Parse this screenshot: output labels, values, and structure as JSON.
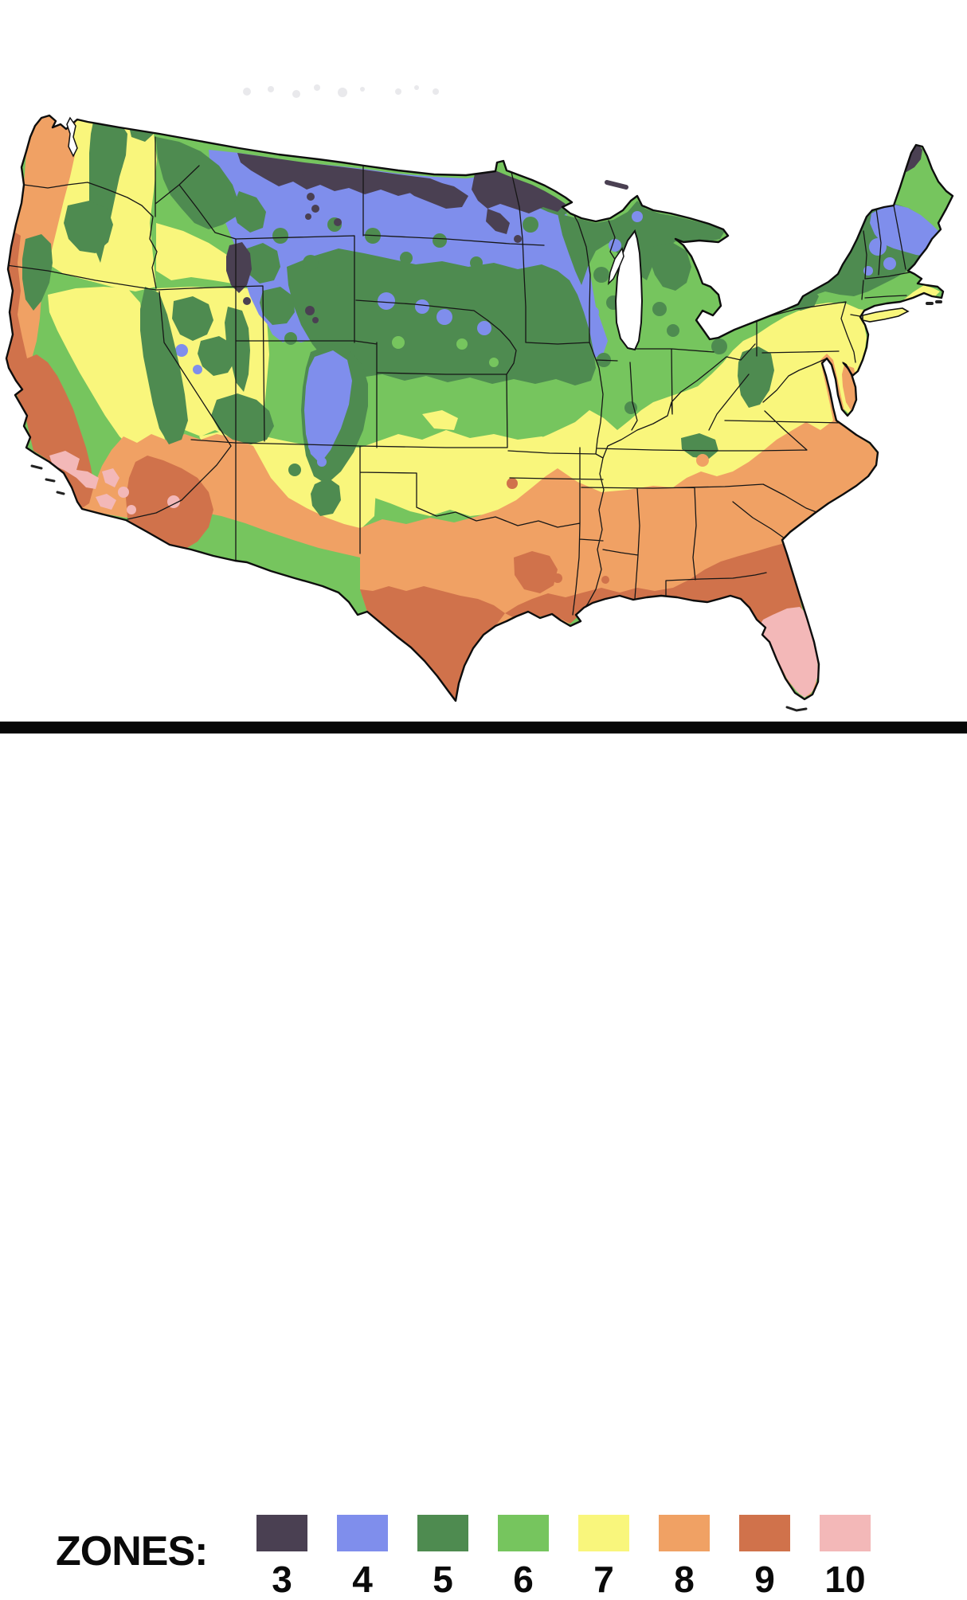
{
  "map": {
    "name": "United States plant hardiness zones map",
    "background_color": "#ffffff",
    "outline_color": "#0d0d0d",
    "water_color": "#ffffff"
  },
  "separator": {
    "color": "#070707"
  },
  "legend": {
    "label": "ZONES:",
    "zones": [
      {
        "label": "3",
        "color": "#4a4052"
      },
      {
        "label": "4",
        "color": "#7f8eec"
      },
      {
        "label": "5",
        "color": "#4e8b50"
      },
      {
        "label": "6",
        "color": "#76c55e"
      },
      {
        "label": "7",
        "color": "#f9f67c"
      },
      {
        "label": "8",
        "color": "#f0a164"
      },
      {
        "label": "9",
        "color": "#d0724b"
      },
      {
        "label": "10",
        "color": "#f3b8b8"
      }
    ]
  }
}
